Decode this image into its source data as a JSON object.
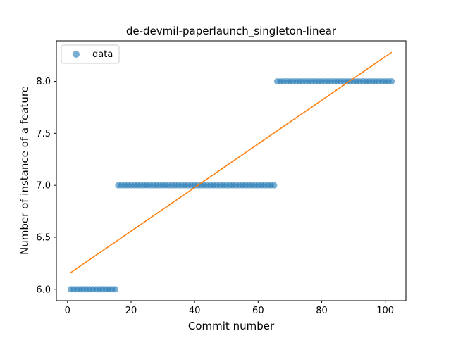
{
  "chart_data": {
    "type": "scatter",
    "title": "de-devmil-paperlaunch_singleton-linear",
    "xlabel": "Commit number",
    "ylabel": "Number of instance of a feature",
    "xlim": [
      -3.5,
      106.5
    ],
    "ylim": [
      5.89,
      8.39
    ],
    "xticks": [
      0,
      20,
      40,
      60,
      80,
      100
    ],
    "xtick_labels": [
      "0",
      "20",
      "40",
      "60",
      "80",
      "100"
    ],
    "yticks": [
      6.0,
      6.5,
      7.0,
      7.5,
      8.0
    ],
    "ytick_labels": [
      "6.0",
      "6.5",
      "7.0",
      "7.5",
      "8.0"
    ],
    "grid": false,
    "legend_position": "top-left",
    "series": [
      {
        "name": "data",
        "kind": "scatter",
        "color": "#1f77b4",
        "segments": [
          {
            "x_start": 1,
            "x_end": 15,
            "y": 6
          },
          {
            "x_start": 16,
            "x_end": 65,
            "y": 7
          },
          {
            "x_start": 66,
            "x_end": 102,
            "y": 8
          }
        ]
      },
      {
        "kind": "line",
        "color": "#ff7f0e",
        "x": [
          1,
          102
        ],
        "y": [
          6.16,
          8.28
        ]
      }
    ]
  }
}
